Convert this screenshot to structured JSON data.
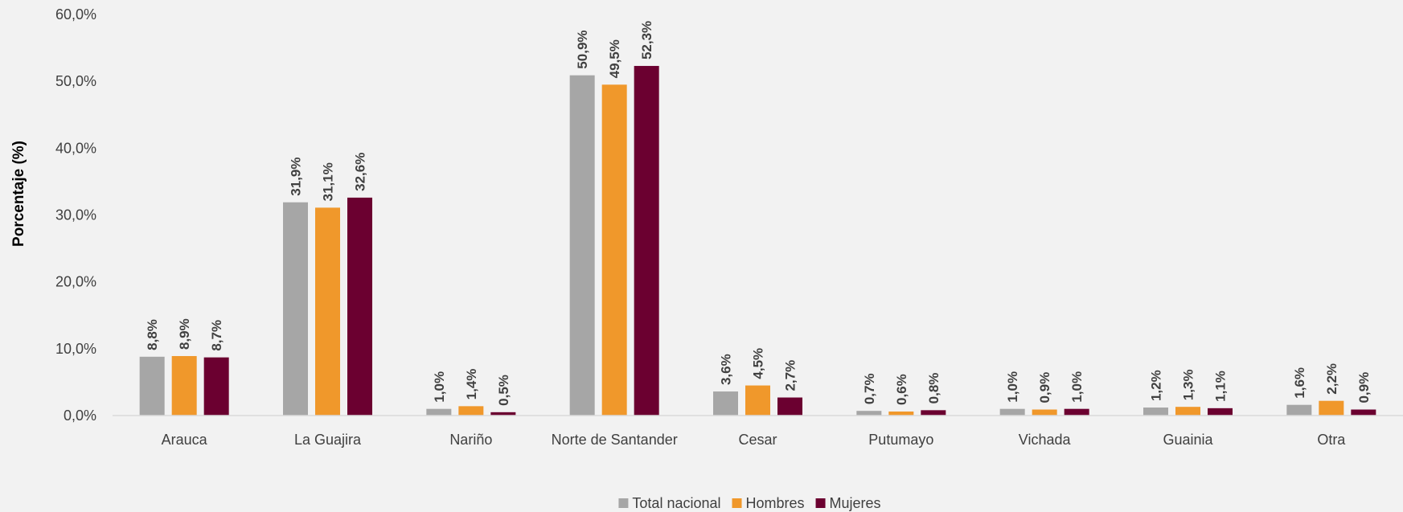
{
  "chart_data": {
    "type": "bar",
    "ylabel": "Porcentaje (%)",
    "ylim": [
      0,
      60
    ],
    "yticks": [
      "0,0%",
      "10,0%",
      "20,0%",
      "30,0%",
      "40,0%",
      "50,0%",
      "60,0%"
    ],
    "categories": [
      "Arauca",
      "La Guajira",
      "Nariño",
      "Norte de Santander",
      "Cesar",
      "Putumayo",
      "Vichada",
      "Guainia",
      "Otra"
    ],
    "series": [
      {
        "name": "Total nacional",
        "color": "#a6a6a6",
        "values": [
          8.8,
          31.9,
          1.0,
          50.9,
          3.6,
          0.7,
          1.0,
          1.2,
          1.6
        ],
        "labels": [
          "8,8%",
          "31,9%",
          "1,0%",
          "50,9%",
          "3,6%",
          "0,7%",
          "1,0%",
          "1,2%",
          "1,6%"
        ]
      },
      {
        "name": "Hombres",
        "color": "#f0982b",
        "values": [
          8.9,
          31.1,
          1.4,
          49.5,
          4.5,
          0.6,
          0.9,
          1.3,
          2.2
        ],
        "labels": [
          "8,9%",
          "31,1%",
          "1,4%",
          "49,5%",
          "4,5%",
          "0,6%",
          "0,9%",
          "1,3%",
          "2,2%"
        ]
      },
      {
        "name": "Mujeres",
        "color": "#6b0030",
        "values": [
          8.7,
          32.6,
          0.5,
          52.3,
          2.7,
          0.8,
          1.0,
          1.1,
          0.9
        ],
        "labels": [
          "8,7%",
          "32,6%",
          "0,5%",
          "52,3%",
          "2,7%",
          "0,8%",
          "1,0%",
          "1,1%",
          "0,9%"
        ]
      }
    ],
    "grid": false,
    "legend": "bottom-center"
  }
}
